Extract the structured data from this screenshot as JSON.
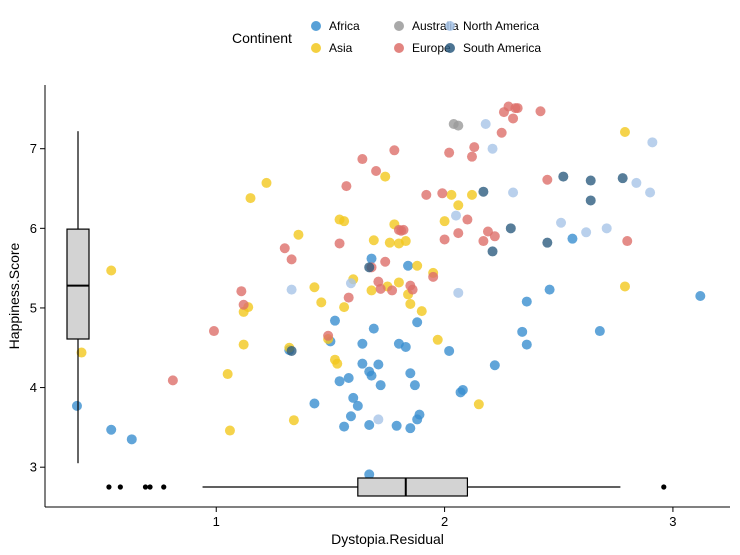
{
  "chart_data": {
    "type": "scatter",
    "xlabel": "Dystopia.Residual",
    "ylabel": "Happiness.Score",
    "xlim": [
      0.25,
      3.25
    ],
    "ylim": [
      2.5,
      7.8
    ],
    "x_ticks": [
      1,
      2,
      3
    ],
    "y_ticks": [
      3,
      4,
      5,
      6,
      7
    ],
    "grid": false,
    "legend_title": "Continent",
    "legend_position": "top",
    "series": [
      {
        "name": "Africa",
        "color": "#3a8fd0",
        "points": [
          [
            0.39,
            3.77
          ],
          [
            0.54,
            3.47
          ],
          [
            0.63,
            3.35
          ],
          [
            1.32,
            4.47
          ],
          [
            1.43,
            3.8
          ],
          [
            1.5,
            4.58
          ],
          [
            1.52,
            4.84
          ],
          [
            1.54,
            4.08
          ],
          [
            1.56,
            3.51
          ],
          [
            1.58,
            4.12
          ],
          [
            1.59,
            3.64
          ],
          [
            1.6,
            3.87
          ],
          [
            1.62,
            3.77
          ],
          [
            1.64,
            4.55
          ],
          [
            1.64,
            4.3
          ],
          [
            1.67,
            4.2
          ],
          [
            1.68,
            5.62
          ],
          [
            1.68,
            4.15
          ],
          [
            1.69,
            4.74
          ],
          [
            1.71,
            4.29
          ],
          [
            1.72,
            4.03
          ],
          [
            1.79,
            3.52
          ],
          [
            1.8,
            4.55
          ],
          [
            1.83,
            4.51
          ],
          [
            1.84,
            5.53
          ],
          [
            1.85,
            4.18
          ],
          [
            1.85,
            3.49
          ],
          [
            1.87,
            4.03
          ],
          [
            1.88,
            3.6
          ],
          [
            1.89,
            3.66
          ],
          [
            1.67,
            3.53
          ],
          [
            2.02,
            4.46
          ],
          [
            2.07,
            3.94
          ],
          [
            2.08,
            3.97
          ],
          [
            2.22,
            4.28
          ],
          [
            2.36,
            5.08
          ],
          [
            2.34,
            4.7
          ],
          [
            2.36,
            4.54
          ],
          [
            2.46,
            5.23
          ],
          [
            2.56,
            5.87
          ],
          [
            2.68,
            4.71
          ],
          [
            3.12,
            5.15
          ],
          [
            1.67,
            2.91
          ],
          [
            1.88,
            4.82
          ]
        ]
      },
      {
        "name": "Asia",
        "color": "#f2c81e",
        "points": [
          [
            0.41,
            4.44
          ],
          [
            0.54,
            5.47
          ],
          [
            1.05,
            4.17
          ],
          [
            1.06,
            3.46
          ],
          [
            1.12,
            4.54
          ],
          [
            1.12,
            4.95
          ],
          [
            1.14,
            5.01
          ],
          [
            1.15,
            6.38
          ],
          [
            1.22,
            6.57
          ],
          [
            1.32,
            4.5
          ],
          [
            1.34,
            3.59
          ],
          [
            1.36,
            5.92
          ],
          [
            1.43,
            5.26
          ],
          [
            1.46,
            5.07
          ],
          [
            1.49,
            4.61
          ],
          [
            1.52,
            4.35
          ],
          [
            1.53,
            4.3
          ],
          [
            1.54,
            6.11
          ],
          [
            1.56,
            6.09
          ],
          [
            1.56,
            5.01
          ],
          [
            1.6,
            5.36
          ],
          [
            1.68,
            5.22
          ],
          [
            1.69,
            5.85
          ],
          [
            1.74,
            6.65
          ],
          [
            1.75,
            5.27
          ],
          [
            1.76,
            5.82
          ],
          [
            1.78,
            6.05
          ],
          [
            1.8,
            5.32
          ],
          [
            1.8,
            5.81
          ],
          [
            1.83,
            5.84
          ],
          [
            1.84,
            5.17
          ],
          [
            1.85,
            5.05
          ],
          [
            1.88,
            5.53
          ],
          [
            1.9,
            4.96
          ],
          [
            1.95,
            5.44
          ],
          [
            1.97,
            4.6
          ],
          [
            2.0,
            6.09
          ],
          [
            2.03,
            6.42
          ],
          [
            2.06,
            6.29
          ],
          [
            2.12,
            6.42
          ],
          [
            2.15,
            3.79
          ],
          [
            2.79,
            7.21
          ],
          [
            2.79,
            5.27
          ]
        ]
      },
      {
        "name": "Australia",
        "color": "#9a9a9a",
        "points": [
          [
            2.04,
            7.31
          ],
          [
            2.06,
            7.29
          ]
        ]
      },
      {
        "name": "Europe",
        "color": "#dd6f6a",
        "points": [
          [
            0.81,
            4.09
          ],
          [
            0.99,
            4.71
          ],
          [
            1.11,
            5.21
          ],
          [
            1.12,
            5.04
          ],
          [
            1.3,
            5.75
          ],
          [
            1.33,
            5.61
          ],
          [
            1.49,
            4.65
          ],
          [
            1.54,
            5.81
          ],
          [
            1.57,
            6.53
          ],
          [
            1.58,
            5.13
          ],
          [
            1.64,
            6.87
          ],
          [
            1.68,
            5.51
          ],
          [
            1.7,
            6.72
          ],
          [
            1.71,
            5.33
          ],
          [
            1.72,
            5.24
          ],
          [
            1.74,
            5.58
          ],
          [
            1.77,
            5.22
          ],
          [
            1.78,
            6.98
          ],
          [
            1.8,
            5.98
          ],
          [
            1.81,
            5.97
          ],
          [
            1.82,
            5.98
          ],
          [
            1.85,
            5.28
          ],
          [
            1.86,
            5.23
          ],
          [
            1.92,
            6.42
          ],
          [
            1.95,
            5.39
          ],
          [
            1.99,
            6.44
          ],
          [
            2.0,
            5.86
          ],
          [
            2.02,
            6.95
          ],
          [
            2.06,
            5.94
          ],
          [
            2.1,
            6.11
          ],
          [
            2.12,
            6.9
          ],
          [
            2.13,
            7.02
          ],
          [
            2.17,
            5.84
          ],
          [
            2.19,
            5.96
          ],
          [
            2.22,
            5.9
          ],
          [
            2.26,
            7.46
          ],
          [
            2.28,
            7.53
          ],
          [
            2.3,
            7.38
          ],
          [
            2.31,
            7.51
          ],
          [
            2.32,
            7.51
          ],
          [
            2.42,
            7.47
          ],
          [
            2.45,
            6.61
          ],
          [
            2.25,
            7.2
          ],
          [
            2.8,
            5.84
          ]
        ]
      },
      {
        "name": "North America",
        "color": "#a7c4e7",
        "points": [
          [
            1.33,
            5.23
          ],
          [
            1.59,
            5.31
          ],
          [
            1.71,
            3.6
          ],
          [
            2.05,
            6.16
          ],
          [
            2.06,
            5.19
          ],
          [
            2.18,
            7.31
          ],
          [
            2.21,
            7.0
          ],
          [
            2.3,
            6.45
          ],
          [
            2.51,
            6.07
          ],
          [
            2.62,
            5.95
          ],
          [
            2.71,
            6.0
          ],
          [
            2.84,
            6.57
          ],
          [
            2.9,
            6.45
          ],
          [
            2.91,
            7.08
          ]
        ]
      },
      {
        "name": "South America",
        "color": "#2d5c80",
        "points": [
          [
            1.33,
            4.46
          ],
          [
            1.67,
            5.51
          ],
          [
            2.17,
            6.46
          ],
          [
            2.21,
            5.71
          ],
          [
            2.29,
            6.0
          ],
          [
            2.45,
            5.82
          ],
          [
            2.52,
            6.65
          ],
          [
            2.64,
            6.35
          ],
          [
            2.64,
            6.6
          ],
          [
            2.78,
            6.63
          ]
        ]
      }
    ],
    "x_boxplot": {
      "min": 0.94,
      "q1": 1.62,
      "median": 1.83,
      "q3": 2.1,
      "max": 2.77,
      "outliers": [
        0.53,
        0.58,
        0.69,
        0.71,
        0.77,
        2.96
      ]
    },
    "y_boxplot": {
      "min": 3.05,
      "q1": 4.61,
      "median": 5.28,
      "q3": 5.99,
      "max": 7.22,
      "outliers": []
    }
  }
}
